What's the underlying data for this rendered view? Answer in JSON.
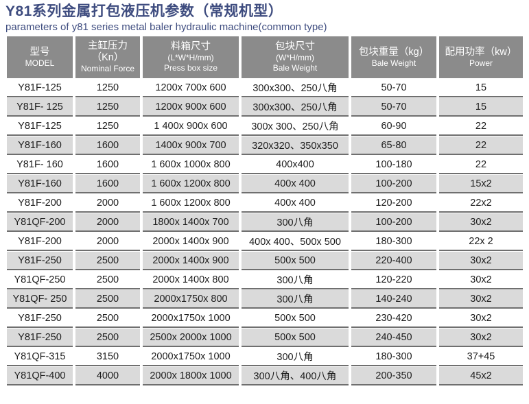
{
  "page": {
    "title": "Y81系列金属打包液压机参数（常规机型）",
    "subtitle": "parameters of y81 series metal baler hydraulic machine(common type)"
  },
  "colors": {
    "title_text": "#3e4c7f",
    "header_bg": "#8b8b8b",
    "header_text": "#ffffff",
    "row_alt_bg": "#dadada",
    "cell_border": "#6f6f6f",
    "body_text": "#1d1d1d"
  },
  "table": {
    "columns": [
      {
        "id": "model",
        "lines": [
          "型号",
          "MODEL"
        ]
      },
      {
        "id": "nominal-force",
        "lines": [
          "主缸压力（Kn）",
          "Nominal Force"
        ]
      },
      {
        "id": "press-box-size",
        "lines": [
          "料箱尺寸",
          "(L*W*H/mm)",
          "Press box size"
        ]
      },
      {
        "id": "bale-size",
        "lines": [
          "包块尺寸",
          "(W*H/mm)",
          "Bale Weight"
        ]
      },
      {
        "id": "bale-weight",
        "lines": [
          "包块重量（kg）",
          "Bale Weight"
        ]
      },
      {
        "id": "power",
        "lines": [
          "配用功率（kw）",
          "Power"
        ]
      }
    ],
    "rows": [
      [
        "Y81F-125",
        "1250",
        "1200x 700x 600",
        "300x300、250八角",
        "50-70",
        "15"
      ],
      [
        "Y81F- 125",
        "1250",
        "1200x 900x 600",
        "300x300、250八角",
        "50-70",
        "15"
      ],
      [
        "Y81F-125",
        "1250",
        "1 400x 900x 600",
        "300x 300、250八角",
        "60-90",
        "22"
      ],
      [
        "Y81F-160",
        "1600",
        "1400x 900x 700",
        "320x320、350x350",
        "65-80",
        "22"
      ],
      [
        "Y81F- 160",
        "1600",
        "1 600x 1000x 800",
        "400x400",
        "100-180",
        "22"
      ],
      [
        "Y81F-160",
        "1600",
        "1 600x 1200x 800",
        "400x 400",
        "100-200",
        "15x2"
      ],
      [
        "Y81F-200",
        "2000",
        "1 600x 1200x 800",
        "400x 400",
        "120-200",
        "22x2"
      ],
      [
        "Y81QF-200",
        "2000",
        "1800x 1400x 700",
        "300八角",
        "100-200",
        "30x2"
      ],
      [
        "Y81F-200",
        "2000",
        "2000x 1400x 900",
        "400x 400、500x 500",
        "180-300",
        "22x 2"
      ],
      [
        "Y81F-250",
        "2500",
        "2000x 1400x 900",
        "500x 500",
        "220-400",
        "30x2"
      ],
      [
        "Y81QF-250",
        "2500",
        "2000x 1400x 800",
        "300八角",
        "120-220",
        "30x2"
      ],
      [
        "Y81QF- 250",
        "2500",
        "2000x1750x 800",
        "300八角",
        "140-240",
        "30x2"
      ],
      [
        "Y81F-250",
        "2500",
        "2000x1750x 1000",
        "500x 500",
        "230-420",
        "30x2"
      ],
      [
        "Y81F-250",
        "2500",
        "2500x 2000x 1000",
        "500x 500",
        "240-450",
        "30x2"
      ],
      [
        "Y81QF-315",
        "3150",
        "2000x1750x 1000",
        "300八角",
        "180-300",
        "37+45"
      ],
      [
        "Y81QF-400",
        "4000",
        "2000x 1800x 1000",
        "300八角、400八角",
        "200-350",
        "45x2"
      ]
    ]
  }
}
